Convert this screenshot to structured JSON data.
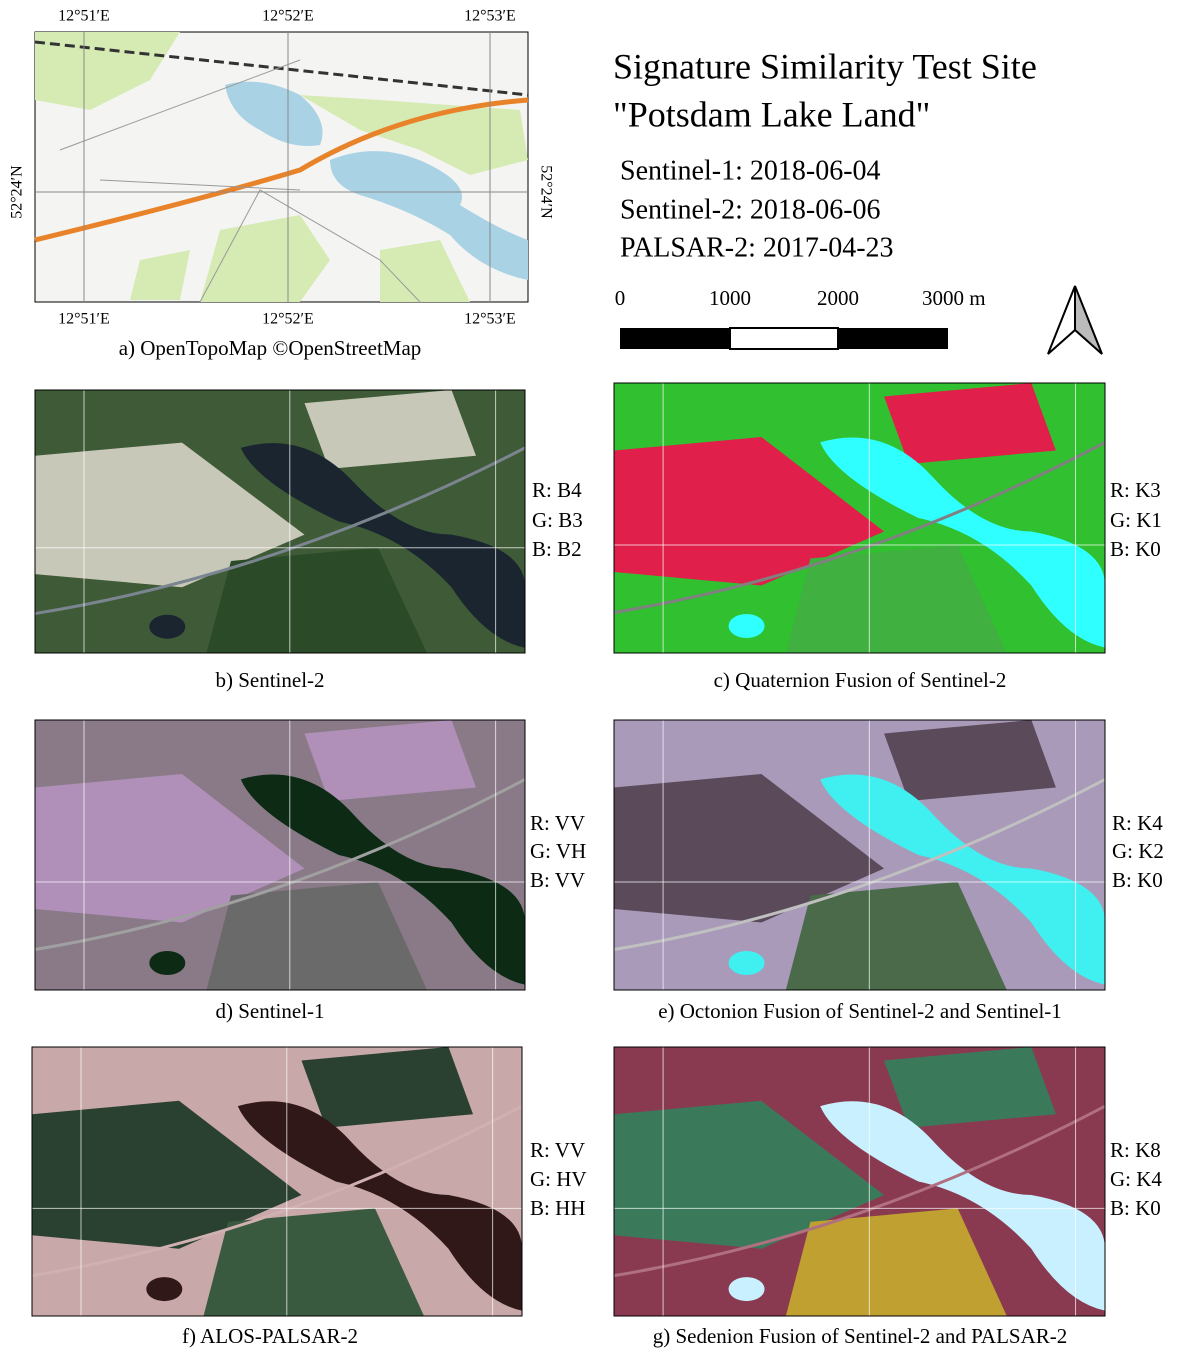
{
  "title": [
    "Signature Similarity Test Site",
    "\"Potsdam Lake Land\""
  ],
  "dates": [
    "Sentinel-1: 2018-06-04",
    "Sentinel-2: 2018-06-06",
    "PALSAR-2: 2017-04-23"
  ],
  "scale_bar": [
    "0",
    "1000",
    "2000",
    "3000 m"
  ],
  "map_a": {
    "top_labels": [
      "12°51′E",
      "12°52′E",
      "12°53′E"
    ],
    "bottom_labels": [
      "12°51′E",
      "12°52′E",
      "12°53′E"
    ],
    "left_label": "52°24′N",
    "right_label": "52°24′N",
    "caption": "a) OpenTopoMap ©OpenStreetMap"
  },
  "panels": [
    {
      "caption": "b) Sentinel-2",
      "bands": [
        "R: B4",
        "G: B3",
        "B: B2"
      ]
    },
    {
      "caption": "c) Quaternion Fusion of Sentinel-2",
      "bands": [
        "R: K3",
        "G: K1",
        "B: K0"
      ]
    },
    {
      "caption": "d) Sentinel-1",
      "bands": [
        "R: VV",
        "G: VH",
        "B: VV"
      ]
    },
    {
      "caption": "e) Octonion Fusion of Sentinel-2 and Sentinel-1",
      "bands": [
        "R: K4",
        "G: K2",
        "B: K0"
      ]
    },
    {
      "caption": "f) ALOS-PALSAR-2",
      "bands": [
        "R: VV",
        "G: HV",
        "B: HH"
      ]
    },
    {
      "caption": "g) Sedenion Fusion of Sentinel-2 and PALSAR-2",
      "bands": [
        "R: K8",
        "G: K4",
        "B: K0"
      ]
    }
  ]
}
